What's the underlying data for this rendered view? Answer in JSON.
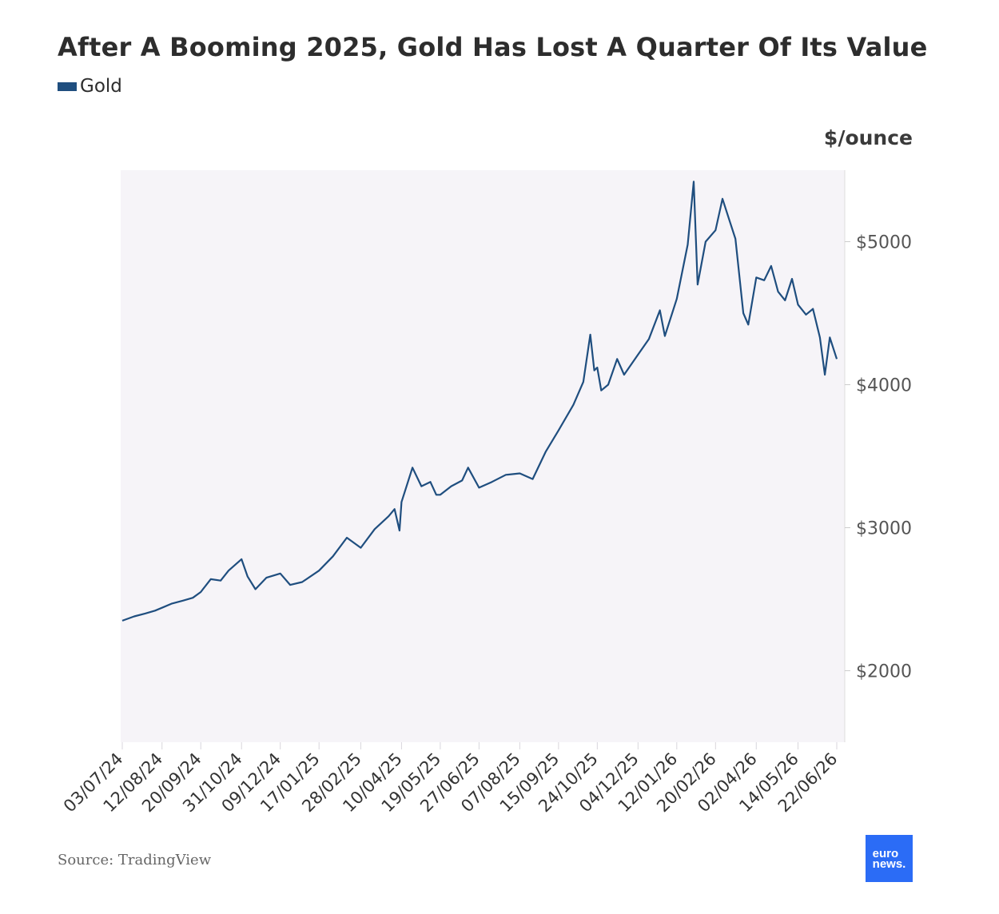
{
  "title": "After A Booming 2025, Gold Has Lost A Quarter Of Its Value",
  "legend": {
    "label": "Gold",
    "color": "#1f4e7f"
  },
  "unit_label": "$/ounce",
  "source": "Source: TradingView",
  "logo": {
    "line1": "euro",
    "line2": "news."
  },
  "chart_data": {
    "type": "line",
    "title": "After A Booming 2025, Gold Has Lost A Quarter Of Its Value",
    "ylabel": "$/ounce",
    "ylim": [
      1500,
      5500
    ],
    "y_ticks": [
      2000,
      3000,
      4000,
      5000
    ],
    "y_tick_labels": [
      "$2000",
      "$3000",
      "$4000",
      "$5000"
    ],
    "x_range": [
      "03/07/24",
      "22/06/26"
    ],
    "x_tick_labels": [
      "03/07/24",
      "12/08/24",
      "20/09/24",
      "31/10/24",
      "09/12/24",
      "17/01/25",
      "28/02/25",
      "10/04/25",
      "19/05/25",
      "27/06/25",
      "07/08/25",
      "15/09/25",
      "24/10/25",
      "04/12/25",
      "12/01/26",
      "20/02/26",
      "02/04/26",
      "14/05/26",
      "22/06/26"
    ],
    "grid": false,
    "legend_position": "top-left",
    "series": [
      {
        "name": "Gold",
        "color": "#1f4e7f",
        "points": [
          [
            "03/07/24",
            2350
          ],
          [
            "15/07/24",
            2380
          ],
          [
            "26/07/24",
            2400
          ],
          [
            "05/08/24",
            2420
          ],
          [
            "12/08/24",
            2440
          ],
          [
            "22/08/24",
            2470
          ],
          [
            "02/09/24",
            2490
          ],
          [
            "12/09/24",
            2510
          ],
          [
            "20/09/24",
            2550
          ],
          [
            "30/09/24",
            2640
          ],
          [
            "10/10/24",
            2630
          ],
          [
            "18/10/24",
            2700
          ],
          [
            "31/10/24",
            2780
          ],
          [
            "06/11/24",
            2660
          ],
          [
            "14/11/24",
            2570
          ],
          [
            "25/11/24",
            2650
          ],
          [
            "09/12/24",
            2680
          ],
          [
            "19/12/24",
            2600
          ],
          [
            "31/12/24",
            2620
          ],
          [
            "17/01/25",
            2700
          ],
          [
            "31/01/25",
            2800
          ],
          [
            "14/02/25",
            2930
          ],
          [
            "28/02/25",
            2860
          ],
          [
            "14/03/25",
            2990
          ],
          [
            "28/03/25",
            3080
          ],
          [
            "03/04/25",
            3130
          ],
          [
            "08/04/25",
            2980
          ],
          [
            "10/04/25",
            3180
          ],
          [
            "21/04/25",
            3420
          ],
          [
            "30/04/25",
            3290
          ],
          [
            "09/05/25",
            3320
          ],
          [
            "15/05/25",
            3230
          ],
          [
            "19/05/25",
            3230
          ],
          [
            "30/05/25",
            3290
          ],
          [
            "10/06/25",
            3330
          ],
          [
            "16/06/25",
            3420
          ],
          [
            "27/06/25",
            3280
          ],
          [
            "10/07/25",
            3320
          ],
          [
            "24/07/25",
            3370
          ],
          [
            "07/08/25",
            3380
          ],
          [
            "20/08/25",
            3340
          ],
          [
            "02/09/25",
            3530
          ],
          [
            "15/09/25",
            3680
          ],
          [
            "30/09/25",
            3860
          ],
          [
            "10/10/25",
            4020
          ],
          [
            "17/10/25",
            4350
          ],
          [
            "21/10/25",
            4100
          ],
          [
            "24/10/25",
            4120
          ],
          [
            "28/10/25",
            3960
          ],
          [
            "04/11/25",
            4000
          ],
          [
            "13/11/25",
            4180
          ],
          [
            "20/11/25",
            4070
          ],
          [
            "04/12/25",
            4210
          ],
          [
            "15/12/25",
            4320
          ],
          [
            "26/12/25",
            4520
          ],
          [
            "31/12/25",
            4340
          ],
          [
            "12/01/26",
            4600
          ],
          [
            "23/01/26",
            4980
          ],
          [
            "29/01/26",
            5420
          ],
          [
            "02/02/26",
            4700
          ],
          [
            "10/02/26",
            5000
          ],
          [
            "20/02/26",
            5080
          ],
          [
            "27/02/26",
            5300
          ],
          [
            "05/03/26",
            5170
          ],
          [
            "12/03/26",
            5020
          ],
          [
            "20/03/26",
            4500
          ],
          [
            "25/03/26",
            4420
          ],
          [
            "02/04/26",
            4750
          ],
          [
            "10/04/26",
            4730
          ],
          [
            "17/04/26",
            4830
          ],
          [
            "24/04/26",
            4650
          ],
          [
            "01/05/26",
            4590
          ],
          [
            "08/05/26",
            4740
          ],
          [
            "14/05/26",
            4560
          ],
          [
            "22/05/26",
            4490
          ],
          [
            "29/05/26",
            4530
          ],
          [
            "05/06/26",
            4330
          ],
          [
            "10/06/26",
            4070
          ],
          [
            "15/06/26",
            4330
          ],
          [
            "22/06/26",
            4180
          ]
        ]
      }
    ]
  }
}
